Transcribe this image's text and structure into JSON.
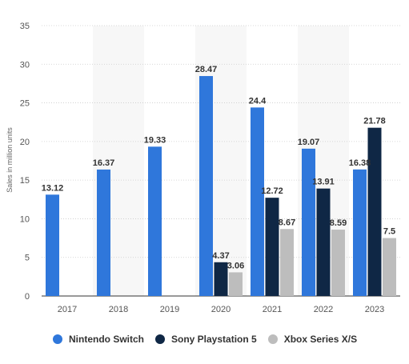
{
  "chart_data": {
    "type": "bar",
    "categories": [
      "2017",
      "2018",
      "2019",
      "2020",
      "2021",
      "2022",
      "2023"
    ],
    "series": [
      {
        "name": "Nintendo Switch",
        "color": "#2f77db",
        "values": [
          13.12,
          16.37,
          19.33,
          28.47,
          24.4,
          19.07,
          16.38
        ],
        "labels": [
          "13.12",
          "16.37",
          "19.33",
          "28.47",
          "24.4",
          "19.07",
          "16.38"
        ]
      },
      {
        "name": "Sony Playstation 5",
        "color": "#0f2745",
        "values": [
          null,
          null,
          null,
          4.37,
          12.72,
          13.91,
          21.78
        ],
        "labels": [
          "",
          "",
          "",
          "4.37",
          "12.72",
          "13.91",
          "21.78"
        ]
      },
      {
        "name": "Xbox Series X/S",
        "color": "#bdbdbd",
        "values": [
          null,
          null,
          null,
          3.06,
          8.67,
          8.59,
          7.5
        ],
        "labels": [
          "",
          "",
          "",
          "3.06",
          "8.67",
          "8.59",
          "7.5"
        ]
      }
    ],
    "ylabel": "Sales in million units",
    "ylim": [
      0,
      35
    ],
    "yticks": [
      "0",
      "5",
      "10",
      "15",
      "20",
      "25",
      "30",
      "35"
    ],
    "grid": true,
    "legend_position": "bottom"
  }
}
